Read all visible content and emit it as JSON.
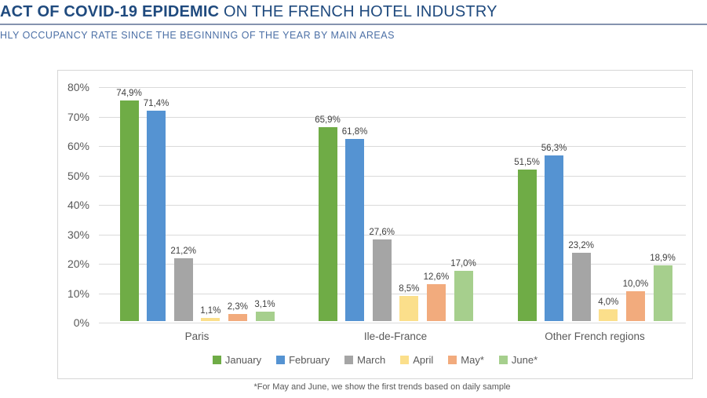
{
  "header": {
    "title_bold": "ACT OF COVID-19 EPIDEMIC",
    "title_rest": " ON THE FRENCH HOTEL INDUSTRY",
    "subtitle": "HLY OCCUPANCY RATE SINCE THE BEGINNING OF THE YEAR BY MAIN AREAS"
  },
  "footnote": "*For May and June, we show the first trends based on daily sample",
  "chart_data": {
    "type": "bar",
    "title": "HLY OCCUPANCY RATE SINCE THE BEGINNING OF THE YEAR BY MAIN AREAS",
    "categories": [
      "Paris",
      "Ile-de-France",
      "Other French regions"
    ],
    "series": [
      {
        "name": "January",
        "color": "#6FAC46",
        "values": [
          74.9,
          65.9,
          51.5
        ],
        "labels": [
          "74,9%",
          "65,9%",
          "51,5%"
        ]
      },
      {
        "name": "February",
        "color": "#5593D2",
        "values": [
          71.4,
          61.8,
          56.3
        ],
        "labels": [
          "71,4%",
          "61,8%",
          "56,3%"
        ]
      },
      {
        "name": "March",
        "color": "#A5A5A5",
        "values": [
          21.2,
          27.6,
          23.2
        ],
        "labels": [
          "21,2%",
          "27,6%",
          "23,2%"
        ]
      },
      {
        "name": "April",
        "color": "#FBDF8B",
        "values": [
          1.1,
          8.5,
          4.0
        ],
        "labels": [
          "1,1%",
          "8,5%",
          "4,0%"
        ]
      },
      {
        "name": "May*",
        "color": "#F2AB7D",
        "values": [
          2.3,
          12.6,
          10.0
        ],
        "labels": [
          "2,3%",
          "12,6%",
          "10,0%"
        ]
      },
      {
        "name": "June*",
        "color": "#A6CF8D",
        "values": [
          3.1,
          17.0,
          18.9
        ],
        "labels": [
          "3,1%",
          "17,0%",
          "18,9%"
        ]
      }
    ],
    "y_ticks": [
      "80%",
      "70%",
      "60%",
      "50%",
      "40%",
      "30%",
      "20%",
      "10%",
      "0%"
    ],
    "ylim": [
      0,
      80
    ],
    "grid": true,
    "legend_position": "bottom"
  }
}
